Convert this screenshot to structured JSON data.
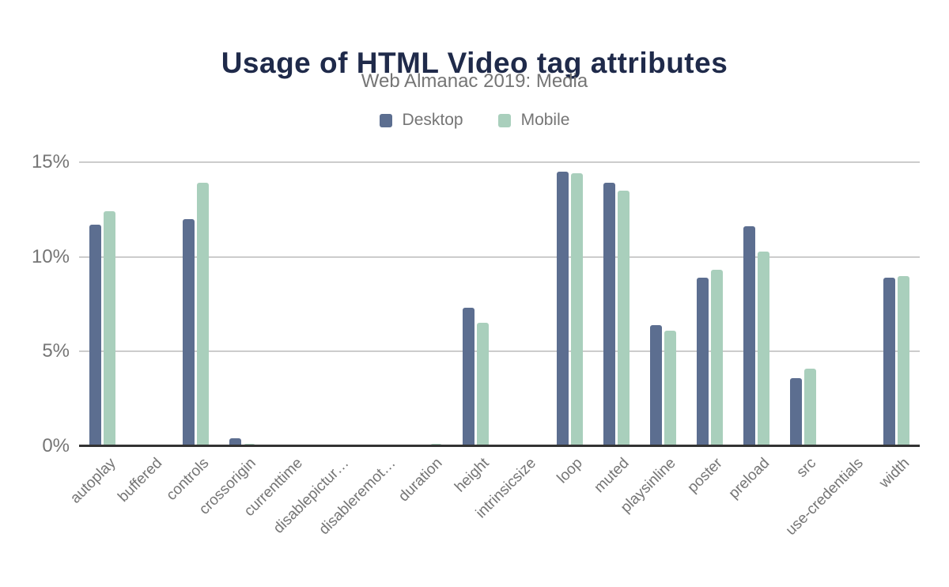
{
  "title": "Usage of HTML Video tag attributes",
  "subtitle": "Web Almanac 2019: Media",
  "colors": {
    "title": "#1f2a4a",
    "muted_text": "#757575",
    "gridline": "#cccccc",
    "baseline": "#333333",
    "background": "#ffffff",
    "desktop": "#5c6e90",
    "mobile": "#a9cfbc"
  },
  "legend": {
    "items": [
      {
        "label": "Desktop",
        "color": "#5c6e90"
      },
      {
        "label": "Mobile",
        "color": "#a9cfbc"
      }
    ]
  },
  "chart_data": {
    "type": "bar",
    "title": "Usage of HTML Video tag attributes",
    "subtitle": "Web Almanac 2019: Media",
    "categories": [
      "autoplay",
      "buffered",
      "controls",
      "crossorigin",
      "currenttime",
      "disablepictur…",
      "disableremot…",
      "duration",
      "height",
      "intrinsicsize",
      "loop",
      "muted",
      "playsinline",
      "poster",
      "preload",
      "src",
      "use-credentials",
      "width"
    ],
    "series": [
      {
        "name": "Desktop",
        "color": "#5c6e90",
        "values": [
          11.7,
          0,
          12.0,
          0.4,
          0.05,
          0.05,
          0.05,
          0.05,
          7.3,
          0,
          14.5,
          13.9,
          6.4,
          8.9,
          11.6,
          3.6,
          0,
          8.9
        ]
      },
      {
        "name": "Mobile",
        "color": "#a9cfbc",
        "values": [
          12.4,
          0,
          13.9,
          0.12,
          0.05,
          0.05,
          0.05,
          0.12,
          6.5,
          0,
          14.4,
          13.5,
          6.1,
          9.3,
          10.3,
          4.1,
          0,
          9.0
        ]
      }
    ],
    "xlabel": "",
    "ylabel": "",
    "ylim": [
      0,
      15
    ],
    "y_ticks": [
      {
        "label": "0%",
        "value": 0
      },
      {
        "label": "5%",
        "value": 5
      },
      {
        "label": "10%",
        "value": 10
      },
      {
        "label": "15%",
        "value": 15
      }
    ],
    "grid": true,
    "legend_position": "top",
    "value_unit": "%"
  }
}
